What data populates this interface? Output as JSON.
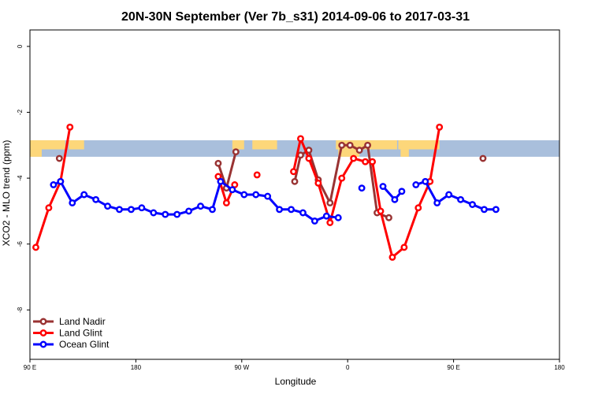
{
  "chart_data": {
    "type": "line",
    "title": "20N-30N September (Ver 7b_s31)   2014-09-06 to 2017-03-31",
    "xlabel": "Longitude",
    "ylabel": "XCO2 - MLO trend (ppm)",
    "xlim": [
      90,
      540
    ],
    "ylim": [
      -9.5,
      0.5
    ],
    "x_ticks": [
      {
        "value": 90,
        "label": "90 E"
      },
      {
        "value": 180,
        "label": "180"
      },
      {
        "value": 270,
        "label": "90 W"
      },
      {
        "value": 360,
        "label": "0"
      },
      {
        "value": 450,
        "label": "90 E"
      },
      {
        "value": 540,
        "label": "180"
      }
    ],
    "y_ticks": [
      {
        "value": 0,
        "label": "0"
      },
      {
        "value": -2,
        "label": "-2"
      },
      {
        "value": -4,
        "label": "-4"
      },
      {
        "value": -6,
        "label": "-6"
      },
      {
        "value": -8,
        "label": "-8"
      }
    ],
    "grid": false,
    "legend_position": "bottom-left",
    "map_band": {
      "y_top": -2.85,
      "y_bottom": -3.35,
      "ocean_color": "#a9bfdc",
      "land_color": "#fdd77a"
    },
    "series": [
      {
        "name": "Land Nadir",
        "color": "#993333",
        "points": [
          [
            115,
            -3.4
          ],
          [
            315,
            -4.1
          ],
          [
            320,
            -3.3
          ],
          [
            327,
            -3.15
          ],
          [
            335,
            -4.05
          ],
          [
            345,
            -4.75
          ],
          [
            355,
            -3.0
          ],
          [
            362,
            -3.0
          ],
          [
            370,
            -3.15
          ],
          [
            377,
            -3.0
          ],
          [
            385,
            -5.05
          ],
          [
            395,
            -5.2
          ],
          [
            250,
            -3.55
          ],
          [
            257,
            -4.3
          ],
          [
            265,
            -3.2
          ],
          [
            475,
            -3.4
          ]
        ],
        "segments": [
          [
            0,
            0
          ],
          [
            1,
            11
          ],
          [
            12,
            14
          ],
          [
            15,
            15
          ]
        ]
      },
      {
        "name": "Land Glint",
        "color": "#ff0000",
        "points": [
          [
            95,
            -6.1
          ],
          [
            106,
            -4.9
          ],
          [
            116,
            -4.1
          ],
          [
            124,
            -2.45
          ],
          [
            250,
            -3.95
          ],
          [
            257,
            -4.75
          ],
          [
            264,
            -4.2
          ],
          [
            283,
            -3.9
          ],
          [
            314,
            -3.8
          ],
          [
            320,
            -2.8
          ],
          [
            327,
            -3.4
          ],
          [
            335,
            -4.15
          ],
          [
            345,
            -5.35
          ],
          [
            355,
            -4.0
          ],
          [
            365,
            -3.4
          ],
          [
            375,
            -3.5
          ],
          [
            381,
            -3.5
          ],
          [
            388,
            -5.0
          ],
          [
            398,
            -6.4
          ],
          [
            408,
            -6.1
          ],
          [
            420,
            -4.9
          ],
          [
            430,
            -4.1
          ],
          [
            438,
            -2.45
          ]
        ],
        "segments": [
          [
            0,
            3
          ],
          [
            4,
            6
          ],
          [
            7,
            7
          ],
          [
            8,
            22
          ]
        ]
      },
      {
        "name": "Ocean Glint",
        "color": "#0000ff",
        "points": [
          [
            110,
            -4.2
          ],
          [
            116,
            -4.1
          ],
          [
            126,
            -4.75
          ],
          [
            136,
            -4.5
          ],
          [
            146,
            -4.65
          ],
          [
            156,
            -4.85
          ],
          [
            166,
            -4.95
          ],
          [
            176,
            -4.95
          ],
          [
            185,
            -4.9
          ],
          [
            195,
            -5.05
          ],
          [
            205,
            -5.1
          ],
          [
            215,
            -5.1
          ],
          [
            225,
            -5.0
          ],
          [
            235,
            -4.85
          ],
          [
            245,
            -4.95
          ],
          [
            252,
            -4.1
          ],
          [
            262,
            -4.35
          ],
          [
            272,
            -4.5
          ],
          [
            282,
            -4.5
          ],
          [
            292,
            -4.55
          ],
          [
            302,
            -4.95
          ],
          [
            312,
            -4.95
          ],
          [
            322,
            -5.05
          ],
          [
            332,
            -5.3
          ],
          [
            342,
            -5.15
          ],
          [
            352,
            -5.2
          ],
          [
            372,
            -4.3
          ],
          [
            390,
            -4.25
          ],
          [
            400,
            -4.65
          ],
          [
            406,
            -4.4
          ],
          [
            418,
            -4.2
          ],
          [
            426,
            -4.1
          ],
          [
            436,
            -4.75
          ],
          [
            446,
            -4.5
          ],
          [
            456,
            -4.65
          ],
          [
            466,
            -4.8
          ],
          [
            476,
            -4.95
          ],
          [
            486,
            -4.95
          ]
        ],
        "segments": [
          [
            0,
            25
          ],
          [
            26,
            26
          ],
          [
            27,
            29
          ],
          [
            30,
            37
          ]
        ]
      }
    ]
  }
}
